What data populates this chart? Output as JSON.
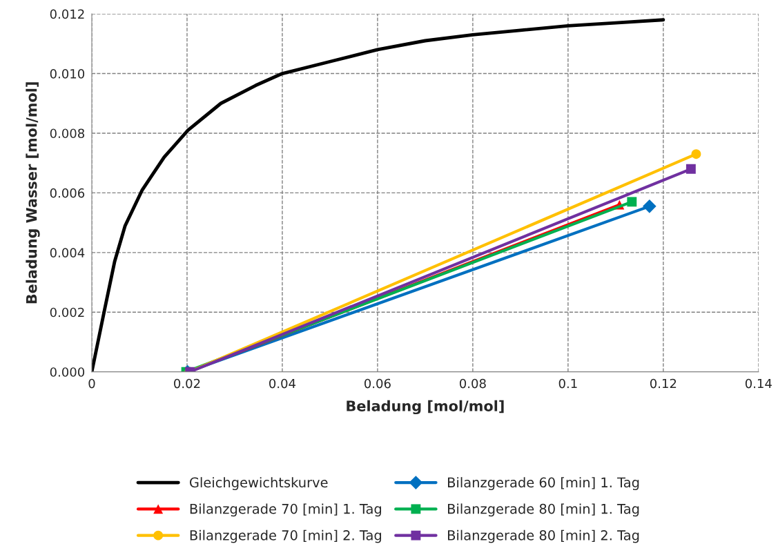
{
  "chart_data": {
    "type": "line",
    "xlabel": "Beladung [mol/mol]",
    "ylabel": "Beladung Wasser [mol/mol]",
    "xlim": [
      0,
      0.14
    ],
    "xticks": [
      0,
      0.02,
      0.04,
      0.06,
      0.08,
      0.1,
      0.12,
      0.14
    ],
    "ylim": [
      0,
      0.012
    ],
    "yticks": [
      {
        "value": 0,
        "label": "0.000"
      },
      {
        "value": 0.002,
        "label": "0.002"
      },
      {
        "value": 0.004,
        "label": "0.004"
      },
      {
        "value": 0.006,
        "label": "0.006"
      },
      {
        "value": 0.008,
        "label": "0.008"
      },
      {
        "value": 0.01,
        "label": "0.010"
      },
      {
        "value": 0.012,
        "label": "0.012"
      }
    ],
    "grid": true,
    "legend": "bottom",
    "series": [
      {
        "name": "Gleichgewichtskurve",
        "color": "#000000",
        "marker": "none",
        "x": [
          0,
          0.0027,
          0.0048,
          0.007,
          0.0106,
          0.0152,
          0.0202,
          0.0271,
          0.0344,
          0.04,
          0.05,
          0.06,
          0.07,
          0.08,
          0.09,
          0.1,
          0.11,
          0.12
        ],
        "values": [
          0,
          0.0021,
          0.0037,
          0.0049,
          0.0061,
          0.0072,
          0.0081,
          0.009,
          0.0096,
          0.01,
          0.0104,
          0.0108,
          0.0111,
          0.0113,
          0.01145,
          0.0116,
          0.0117,
          0.0118
        ]
      },
      {
        "name": "Bilanzgerade 60 [min] 1. Tag",
        "color": "#0070c0",
        "marker": "diamond",
        "x": [
          0.0201,
          0.1171
        ],
        "values": [
          0,
          0.00555
        ]
      },
      {
        "name": "Bilanzgerade 70 [min] 1. Tag",
        "color": "#ff0000",
        "marker": "triangle",
        "x": [
          0.0202,
          0.1108
        ],
        "values": [
          0,
          0.0056
        ]
      },
      {
        "name": "Bilanzgerade 80 [min] 1. Tag",
        "color": "#00b050",
        "marker": "square",
        "x": [
          0.0198,
          0.1134
        ],
        "values": [
          0,
          0.0057
        ]
      },
      {
        "name": "Bilanzgerade 70 [min] 2. Tag",
        "color": "#ffc000",
        "marker": "circle",
        "x": [
          0.0205,
          0.1269
        ],
        "values": [
          0,
          0.0073
        ]
      },
      {
        "name": "Bilanzgerade 80 [min] 2. Tag",
        "color": "#7030a0",
        "marker": "square",
        "x": [
          0.0206,
          0.1258
        ],
        "values": [
          0,
          0.0068
        ]
      }
    ]
  }
}
